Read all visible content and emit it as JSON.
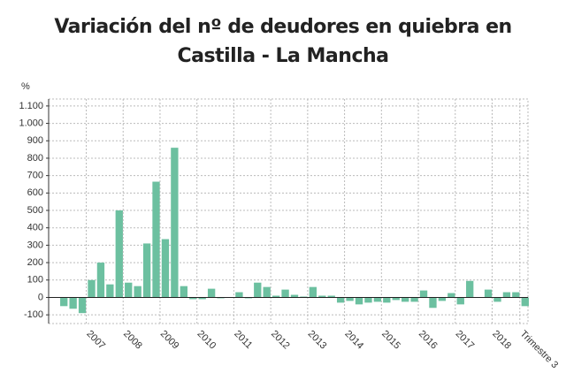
{
  "chart_data": {
    "type": "bar",
    "title": "Variación del nº de deudores en quiebra en Castilla - La Mancha",
    "y_label": "%",
    "color": "#6cc0a0",
    "grid": true,
    "categories": [
      null,
      null,
      null,
      "2007",
      null,
      null,
      null,
      "2008",
      null,
      null,
      null,
      "2009",
      null,
      null,
      null,
      "2010",
      null,
      null,
      null,
      "2011",
      null,
      null,
      null,
      "2012",
      null,
      null,
      null,
      "2013",
      null,
      null,
      null,
      "2014",
      null,
      null,
      null,
      "2015",
      null,
      null,
      null,
      "2016",
      null,
      null,
      null,
      "2017",
      null,
      null,
      null,
      "2018",
      null,
      null,
      "Trimestre 3"
    ],
    "values": [
      -50,
      -65,
      -90,
      100,
      200,
      75,
      500,
      85,
      65,
      310,
      665,
      335,
      860,
      65,
      -10,
      -10,
      50,
      -5,
      0,
      30,
      -5,
      85,
      60,
      10,
      45,
      15,
      5,
      60,
      10,
      10,
      -30,
      -20,
      -40,
      -30,
      -25,
      -30,
      -15,
      -25,
      -25,
      40,
      -60,
      -20,
      25,
      -40,
      95,
      0,
      45,
      -25,
      30,
      30,
      -50
    ],
    "ylim": [
      -150,
      1140
    ],
    "yticks": [
      -100,
      0,
      100,
      200,
      300,
      400,
      500,
      600,
      700,
      800,
      900,
      {
        "value": 1000,
        "label": "1.000"
      },
      {
        "value": 1100,
        "label": "1.100"
      }
    ]
  }
}
